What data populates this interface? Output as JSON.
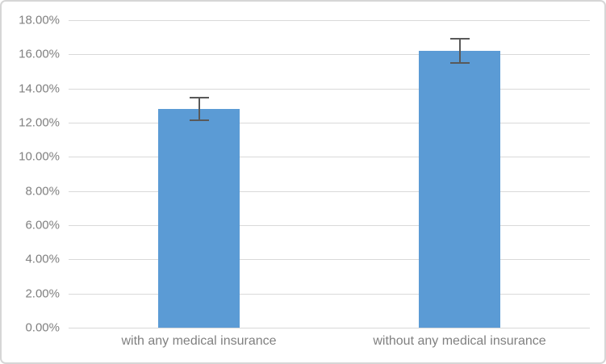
{
  "chart_data": {
    "type": "bar",
    "title": "",
    "xlabel": "",
    "ylabel": "",
    "categories": [
      "with any medical insurance",
      "without any medical insurance"
    ],
    "values": [
      12.8,
      16.2
    ],
    "error_bars": [
      0.65,
      0.7
    ],
    "value_unit": "percent",
    "ylim": [
      0,
      18
    ],
    "y_ticks": [
      {
        "value": 0,
        "label": "0.00%"
      },
      {
        "value": 2,
        "label": "2.00%"
      },
      {
        "value": 4,
        "label": "4.00%"
      },
      {
        "value": 6,
        "label": "6.00%"
      },
      {
        "value": 8,
        "label": "8.00%"
      },
      {
        "value": 10,
        "label": "10.00%"
      },
      {
        "value": 12,
        "label": "12.00%"
      },
      {
        "value": 14,
        "label": "14.00%"
      },
      {
        "value": 16,
        "label": "16.00%"
      },
      {
        "value": 18,
        "label": "18.00%"
      }
    ],
    "grid": true,
    "legend": false,
    "colors": {
      "bar": "#5B9BD5",
      "error_bar": "#595959",
      "gridline": "#D9D9D9",
      "axis_label": "#808080",
      "background": "#FFFFFF",
      "border": "#D6D6D6"
    }
  }
}
